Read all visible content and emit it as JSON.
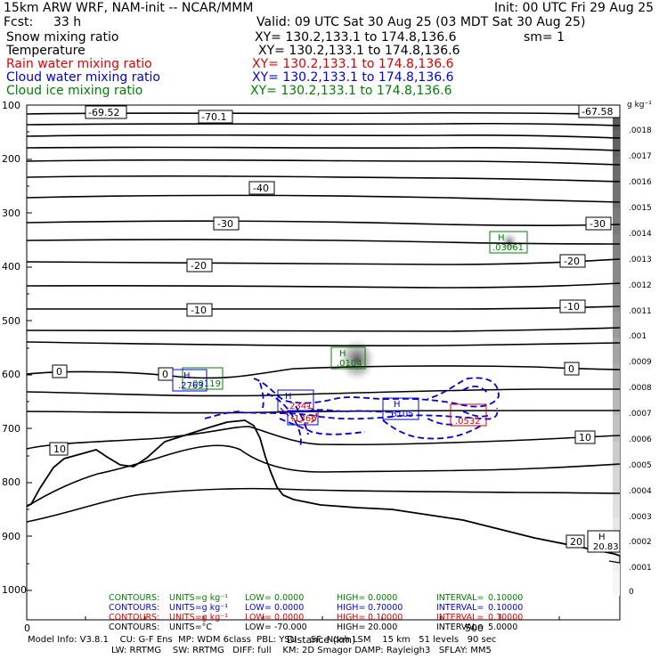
{
  "header": {
    "model": "15km ARW WRF, NAM-init -- NCAR/MMM",
    "init": "Init: 00 UTC Fri 29 Aug 25",
    "fcst_label": "Fcst:",
    "fcst_value": "33 h",
    "valid": "Valid: 09 UTC Sat 30 Aug 25 (03 MDT Sat 30 Aug 25)",
    "fields": [
      {
        "name": "Snow mixing ratio",
        "xy": "XY= 130.2,133.1 to 174.8,136.6",
        "extra": "sm= 1",
        "color": "#000000"
      },
      {
        "name": "Temperature",
        "xy": "XY= 130.2,133.1 to 174.8,136.6",
        "extra": "",
        "color": "#000000"
      },
      {
        "name": "Rain water mixing ratio",
        "xy": "XY= 130.2,133.1 to 174.8,136.6",
        "extra": "",
        "color": "#e00000"
      },
      {
        "name": "Cloud water mixing ratio",
        "xy": "XY= 130.2,133.1 to 174.8,136.6",
        "extra": "",
        "color": "#0000e0"
      },
      {
        "name": "Cloud ice mixing ratio",
        "xy": "XY= 130.2,133.1 to 174.8,136.6",
        "extra": "",
        "color": "#008000"
      }
    ]
  },
  "chart_data": {
    "type": "contour-cross-section",
    "xlabel": "Distance (km)",
    "x_ticks": [
      "0",
      "500"
    ],
    "y_ticks": [
      "100",
      "200",
      "300",
      "400",
      "500",
      "600",
      "700",
      "800",
      "900",
      "1000"
    ],
    "colorbar": {
      "units": "g kg⁻¹",
      "ticks": [
        ".0018",
        ".0017",
        ".0016",
        ".0015",
        ".0014",
        ".0013",
        ".0012",
        ".0011",
        ".001",
        ".0009",
        ".0008",
        ".0007",
        ".0006",
        ".0005",
        ".0004",
        ".0003",
        ".0002",
        ".0001",
        "0"
      ]
    },
    "temperature_contour_labels": [
      "-69.52",
      "-70.1",
      "-67.58",
      "-40",
      "-30",
      "-30",
      "-20",
      "-20",
      "-10",
      "-10",
      "0",
      "0",
      "0",
      "10",
      "10",
      "20"
    ],
    "maxima": [
      {
        "symbol": "H",
        "value": ".03061",
        "field": "cloud ice"
      },
      {
        "symbol": "H",
        "value": ".0104",
        "field": "cloud ice"
      },
      {
        "symbol": "H",
        "value": ".2763",
        "field": "cloud water"
      },
      {
        "symbol": "H",
        "value": ".00119",
        "field": "cloud ice"
      },
      {
        "symbol": "H",
        "value": ".2341",
        "field": "cloud water"
      },
      {
        "symbol": "H",
        "value": ".1366",
        "field": "cloud water"
      },
      {
        "symbol": "H",
        "value": ".6105",
        "field": "cloud water"
      },
      {
        "symbol": "H",
        "value": ".0532",
        "field": "rain water"
      },
      {
        "symbol": "H",
        "value": "20.83",
        "field": "temperature"
      }
    ],
    "contour_info": [
      {
        "units": "g kg⁻¹",
        "low": "0.0000",
        "high": "0.0000",
        "interval": "0.10000",
        "color": "#008000"
      },
      {
        "units": "g kg⁻¹",
        "low": "0.0000",
        "high": "0.70000",
        "interval": "0.10000",
        "color": "#0000e0"
      },
      {
        "units": "g kg⁻¹",
        "low": "0.0000",
        "high": "0.10000",
        "interval": "0.10000",
        "color": "#e00000"
      },
      {
        "units": "°C",
        "low": "-70.000",
        "high": "20.000",
        "interval": "5.0000",
        "color": "#000000"
      }
    ]
  },
  "footer": {
    "line1": "Model Info: V3.8.1    CU: G-F Ens  MP: WDM 6class  PBL: YSU     SF: Noah LSM    15 km   51 levels   90 sec",
    "line2": "LW: RRTMG    SW: RRTMG   DIFF: full    KM: 2D Smagor DAMP: Rayleigh3   SFLAY: MM5"
  },
  "contour_label_words": {
    "contours": "CONTOURS:",
    "units": "UNITS=",
    "low": "LOW=",
    "high": "HIGH=",
    "interval": "INTERVAL="
  }
}
